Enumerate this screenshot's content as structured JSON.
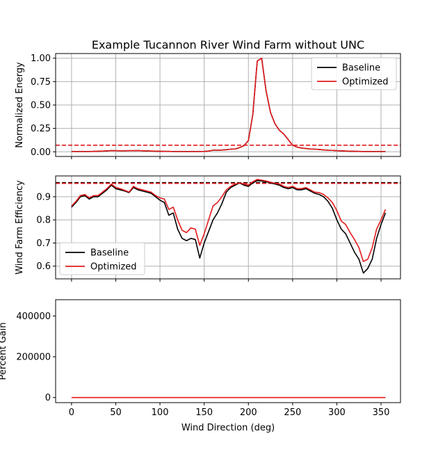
{
  "figure": {
    "title": "Example Tucannon River Wind Farm without UNC"
  },
  "colors": {
    "baseline": "#000000",
    "optimized": "#e31a1c",
    "grid": "#b0b0b0"
  },
  "chart_data": [
    {
      "type": "line",
      "title": "Example Tucannon River Wind Farm without UNC",
      "xlabel": "",
      "ylabel": "Normalized Energy",
      "xlim": [
        -18,
        372
      ],
      "ylim": [
        -0.05,
        1.05
      ],
      "xticks": [
        0,
        50,
        100,
        150,
        200,
        250,
        300,
        350
      ],
      "yticks": [
        0.0,
        0.25,
        0.5,
        0.75,
        1.0
      ],
      "ytick_labels": [
        "0.00",
        "0.25",
        "0.50",
        "0.75",
        "1.00"
      ],
      "show_xtick_labels": false,
      "grid": true,
      "legend": {
        "placement": "upper-right",
        "entries": [
          "Baseline",
          "Optimized"
        ]
      },
      "hlines": [
        {
          "y": 0.07,
          "style": "dashed",
          "color_key": "optimized"
        }
      ],
      "x": [
        0,
        5,
        10,
        15,
        20,
        25,
        30,
        35,
        40,
        45,
        50,
        55,
        60,
        65,
        70,
        75,
        80,
        85,
        90,
        95,
        100,
        105,
        110,
        115,
        120,
        125,
        130,
        135,
        140,
        145,
        150,
        155,
        160,
        165,
        170,
        175,
        180,
        185,
        190,
        195,
        200,
        205,
        210,
        215,
        220,
        225,
        230,
        235,
        240,
        245,
        250,
        255,
        260,
        265,
        270,
        275,
        280,
        285,
        290,
        295,
        300,
        305,
        310,
        315,
        320,
        325,
        330,
        335,
        340,
        345,
        350,
        355
      ],
      "series": [
        {
          "name": "Baseline",
          "color_key": "baseline",
          "values": [
            0.003,
            0.003,
            0.003,
            0.003,
            0.003,
            0.004,
            0.005,
            0.007,
            0.01,
            0.013,
            0.012,
            0.011,
            0.011,
            0.012,
            0.012,
            0.013,
            0.011,
            0.009,
            0.008,
            0.006,
            0.005,
            0.004,
            0.004,
            0.003,
            0.003,
            0.003,
            0.003,
            0.003,
            0.003,
            0.003,
            0.004,
            0.008,
            0.017,
            0.017,
            0.018,
            0.022,
            0.028,
            0.03,
            0.045,
            0.065,
            0.12,
            0.4,
            0.97,
            1.0,
            0.65,
            0.42,
            0.3,
            0.23,
            0.19,
            0.13,
            0.07,
            0.05,
            0.04,
            0.035,
            0.03,
            0.028,
            0.025,
            0.02,
            0.017,
            0.015,
            0.012,
            0.01,
            0.008,
            0.006,
            0.005,
            0.004,
            0.003,
            0.003,
            0.003,
            0.003,
            0.003,
            0.003
          ]
        },
        {
          "name": "Optimized",
          "color_key": "optimized",
          "values": [
            0.003,
            0.003,
            0.003,
            0.003,
            0.003,
            0.004,
            0.005,
            0.007,
            0.01,
            0.013,
            0.012,
            0.011,
            0.011,
            0.012,
            0.012,
            0.013,
            0.011,
            0.009,
            0.008,
            0.006,
            0.005,
            0.004,
            0.004,
            0.003,
            0.003,
            0.003,
            0.003,
            0.003,
            0.003,
            0.003,
            0.004,
            0.008,
            0.017,
            0.017,
            0.018,
            0.022,
            0.028,
            0.03,
            0.045,
            0.065,
            0.12,
            0.4,
            0.97,
            1.0,
            0.65,
            0.42,
            0.3,
            0.23,
            0.19,
            0.13,
            0.07,
            0.05,
            0.04,
            0.035,
            0.03,
            0.028,
            0.025,
            0.02,
            0.017,
            0.015,
            0.012,
            0.01,
            0.008,
            0.006,
            0.005,
            0.004,
            0.003,
            0.003,
            0.003,
            0.003,
            0.003,
            0.003
          ]
        }
      ]
    },
    {
      "type": "line",
      "title": "",
      "xlabel": "",
      "ylabel": "Wind Farm Efficiency",
      "xlim": [
        -18,
        372
      ],
      "ylim": [
        0.545,
        0.99
      ],
      "xticks": [
        0,
        50,
        100,
        150,
        200,
        250,
        300,
        350
      ],
      "yticks": [
        0.6,
        0.7,
        0.8,
        0.9
      ],
      "ytick_labels": [
        "0.6",
        "0.7",
        "0.8",
        "0.9"
      ],
      "show_xtick_labels": false,
      "grid": true,
      "legend": {
        "placement": "lower-left",
        "entries": [
          "Baseline",
          "Optimized"
        ]
      },
      "hlines": [
        {
          "y": 0.961,
          "style": "dashed",
          "color_key": "baseline"
        },
        {
          "y": 0.958,
          "style": "dashed",
          "color_key": "optimized"
        }
      ],
      "x": [
        0,
        5,
        10,
        15,
        20,
        25,
        30,
        35,
        40,
        45,
        50,
        55,
        60,
        65,
        70,
        75,
        80,
        85,
        90,
        95,
        100,
        105,
        110,
        115,
        120,
        125,
        130,
        135,
        140,
        145,
        150,
        155,
        160,
        165,
        170,
        175,
        180,
        185,
        190,
        195,
        200,
        205,
        210,
        215,
        220,
        225,
        230,
        235,
        240,
        245,
        250,
        255,
        260,
        265,
        270,
        275,
        280,
        285,
        290,
        295,
        300,
        305,
        310,
        315,
        320,
        325,
        330,
        335,
        340,
        345,
        350,
        355
      ],
      "series": [
        {
          "name": "Baseline",
          "color_key": "baseline",
          "values": [
            0.855,
            0.875,
            0.9,
            0.905,
            0.89,
            0.9,
            0.9,
            0.915,
            0.93,
            0.95,
            0.935,
            0.93,
            0.925,
            0.918,
            0.94,
            0.93,
            0.925,
            0.92,
            0.915,
            0.9,
            0.885,
            0.875,
            0.82,
            0.83,
            0.76,
            0.72,
            0.71,
            0.72,
            0.715,
            0.635,
            0.7,
            0.75,
            0.8,
            0.83,
            0.87,
            0.92,
            0.94,
            0.95,
            0.96,
            0.95,
            0.945,
            0.96,
            0.97,
            0.968,
            0.965,
            0.96,
            0.955,
            0.95,
            0.94,
            0.935,
            0.94,
            0.93,
            0.93,
            0.935,
            0.925,
            0.915,
            0.91,
            0.9,
            0.88,
            0.85,
            0.8,
            0.76,
            0.74,
            0.7,
            0.66,
            0.63,
            0.57,
            0.59,
            0.63,
            0.72,
            0.78,
            0.83
          ]
        },
        {
          "name": "Optimized",
          "color_key": "optimized",
          "values": [
            0.86,
            0.88,
            0.905,
            0.91,
            0.895,
            0.905,
            0.905,
            0.92,
            0.935,
            0.955,
            0.94,
            0.935,
            0.928,
            0.92,
            0.945,
            0.935,
            0.93,
            0.925,
            0.92,
            0.905,
            0.895,
            0.89,
            0.845,
            0.855,
            0.8,
            0.755,
            0.745,
            0.765,
            0.76,
            0.69,
            0.74,
            0.8,
            0.86,
            0.875,
            0.9,
            0.93,
            0.945,
            0.955,
            0.96,
            0.955,
            0.95,
            0.965,
            0.975,
            0.972,
            0.968,
            0.963,
            0.958,
            0.955,
            0.945,
            0.94,
            0.945,
            0.935,
            0.935,
            0.94,
            0.93,
            0.92,
            0.918,
            0.91,
            0.895,
            0.875,
            0.84,
            0.795,
            0.78,
            0.745,
            0.715,
            0.68,
            0.62,
            0.63,
            0.68,
            0.76,
            0.8,
            0.845
          ]
        }
      ]
    },
    {
      "type": "line",
      "title": "",
      "xlabel": "Wind Direction (deg)",
      "ylabel": "Percent Gain",
      "xlim": [
        -18,
        372
      ],
      "ylim": [
        -25000,
        480000
      ],
      "xticks": [
        0,
        50,
        100,
        150,
        200,
        250,
        300,
        350
      ],
      "yticks": [
        0,
        200000,
        400000
      ],
      "ytick_labels": [
        "0",
        "200000",
        "400000"
      ],
      "show_xtick_labels": true,
      "grid": false,
      "legend": null,
      "hlines": [],
      "x": [
        0,
        355
      ],
      "series": [
        {
          "name": "",
          "color_key": "optimized",
          "values": [
            0,
            0
          ]
        }
      ]
    }
  ]
}
